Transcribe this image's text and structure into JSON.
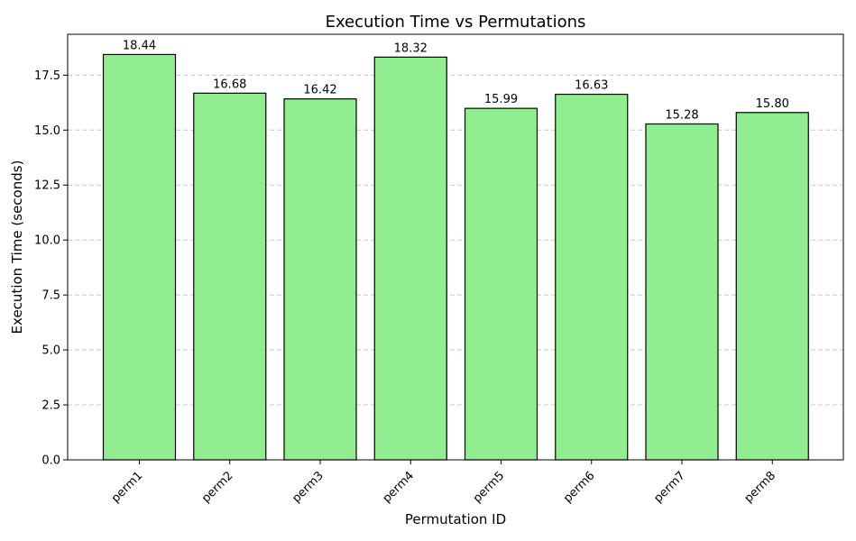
{
  "chart_data": {
    "type": "bar",
    "title": "Execution Time vs Permutations",
    "xlabel": "Permutation ID",
    "ylabel": "Execution Time (seconds)",
    "categories": [
      "perm1",
      "perm2",
      "perm3",
      "perm4",
      "perm5",
      "perm6",
      "perm7",
      "perm8"
    ],
    "values": [
      18.44,
      16.68,
      16.42,
      18.32,
      15.99,
      16.63,
      15.28,
      15.8
    ],
    "data_labels": [
      "18.44",
      "16.68",
      "16.42",
      "18.32",
      "15.99",
      "16.63",
      "15.28",
      "15.80"
    ],
    "yticks": [
      0.0,
      2.5,
      5.0,
      7.5,
      10.0,
      12.5,
      15.0,
      17.5
    ],
    "ytick_labels": [
      "0.0",
      "2.5",
      "5.0",
      "7.5",
      "10.0",
      "12.5",
      "15.0",
      "17.5"
    ],
    "ylim": [
      0,
      19.36
    ],
    "grid": "y-dashed",
    "bar_color": "#90ee90",
    "bar_edge_color": "#000000",
    "xtick_rotation": 45
  }
}
